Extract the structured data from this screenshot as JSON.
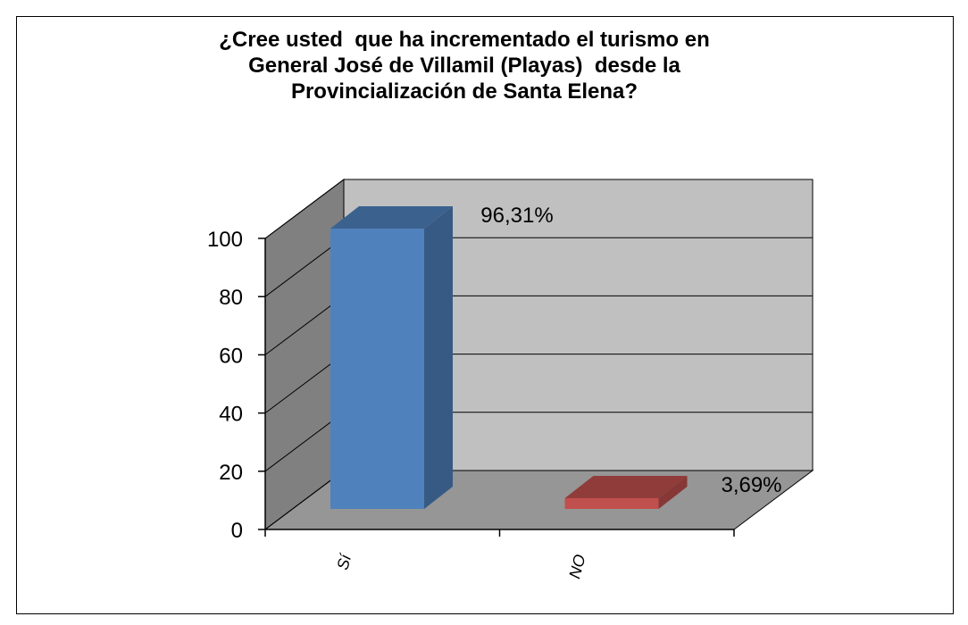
{
  "chart_data": {
    "type": "bar3d",
    "title": "¿Cree usted  que ha incrementado el turismo en General José de Villamil (Playas)  desde la Provincialización de Santa Elena?",
    "categories": [
      "Sí",
      "NO"
    ],
    "values": [
      96.31,
      3.69
    ],
    "value_labels": [
      "96,31%",
      "3,69%"
    ],
    "colors": [
      "#4f81bd",
      "#c0504d"
    ],
    "ylim": [
      0,
      100
    ],
    "yticks": [
      0,
      20,
      40,
      60,
      80,
      100
    ],
    "grid": true
  }
}
